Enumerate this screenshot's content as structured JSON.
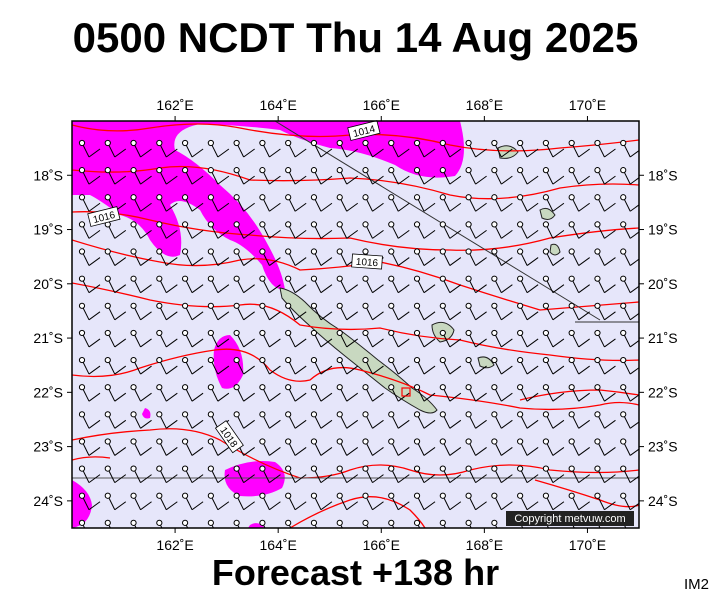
{
  "title": "0500 NCDT Thu 14 Aug 2025",
  "forecast": "Forecast +138 hr",
  "image_code": "IM2",
  "copyright": "Copyright metvuw.com",
  "colors": {
    "ocean": "#e6e6fa",
    "rain": "#ff00ff",
    "isobar": "#ff0000",
    "land": "#c8d8c0",
    "frame": "#000000"
  },
  "map": {
    "lon_range": [
      160.0,
      171.0
    ],
    "lat_range": [
      -24.5,
      -17.0
    ],
    "lon_ticks": [
      {
        "value": 162,
        "label": "162˚E"
      },
      {
        "value": 164,
        "label": "164˚E"
      },
      {
        "value": 166,
        "label": "166˚E"
      },
      {
        "value": 168,
        "label": "168˚E"
      },
      {
        "value": 170,
        "label": "170˚E"
      }
    ],
    "lat_ticks": [
      {
        "value": -18,
        "label": "18˚S"
      },
      {
        "value": -19,
        "label": "19˚S"
      },
      {
        "value": -20,
        "label": "20˚S"
      },
      {
        "value": -21,
        "label": "21˚S"
      },
      {
        "value": -22,
        "label": "22˚S"
      },
      {
        "value": -23,
        "label": "23˚S"
      },
      {
        "value": -24,
        "label": "24˚S"
      }
    ],
    "isobar_labels": [
      "1014",
      "1016",
      "1016",
      "1018"
    ]
  }
}
